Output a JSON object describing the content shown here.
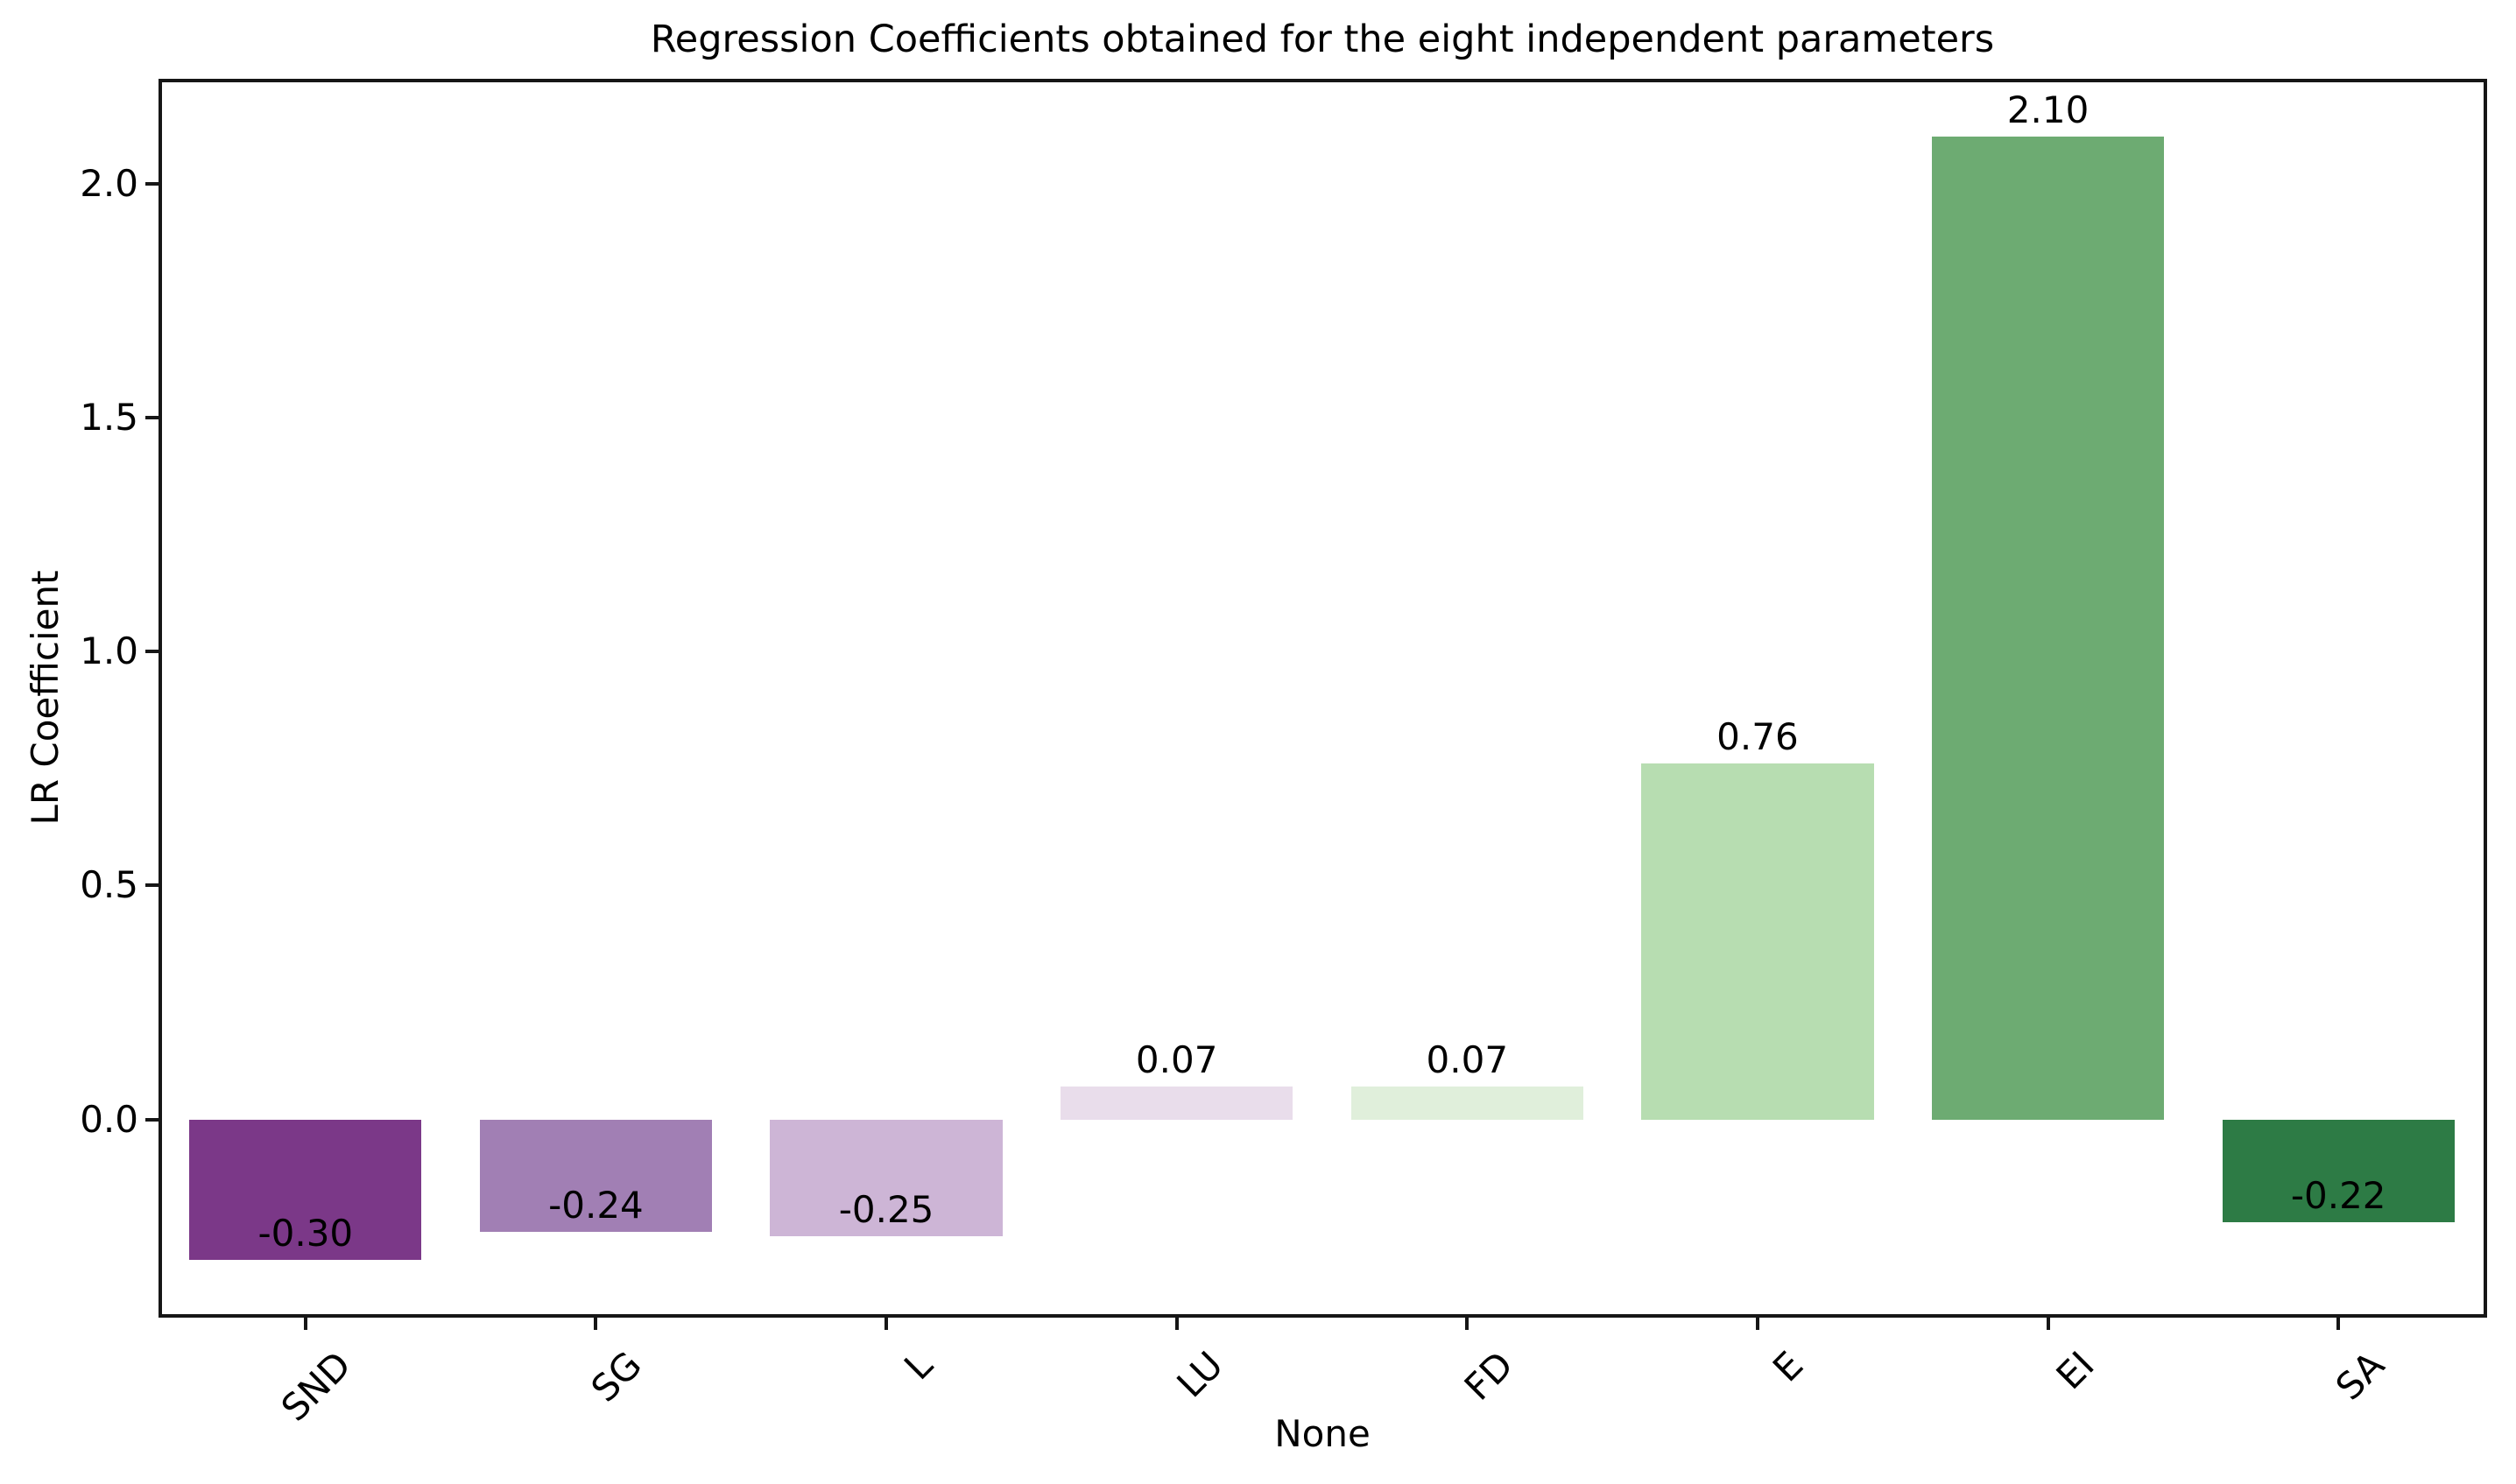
{
  "chart_data": {
    "type": "bar",
    "title": "Regression Coefficients obtained for the eight independent parameters",
    "xlabel": "None",
    "ylabel": "LR Coefficient",
    "categories": [
      "SND",
      "SG",
      "L",
      "LU",
      "FD",
      "E",
      "EI",
      "SA"
    ],
    "values": [
      -0.3,
      -0.24,
      -0.25,
      0.07,
      0.07,
      0.76,
      2.1,
      -0.22
    ],
    "bar_labels": [
      "-0.30",
      "-0.24",
      "-0.25",
      "0.07",
      "0.07",
      "0.76",
      "2.10",
      "-0.22"
    ],
    "bar_colors": [
      "#7b3888",
      "#a17fb4",
      "#cdb5d6",
      "#e9ddeb",
      "#e0efdb",
      "#b7ddb1",
      "#6dab72",
      "#2d7b45"
    ],
    "ylim": [
      -0.42,
      2.22
    ],
    "yticks": [
      0.0,
      0.5,
      1.0,
      1.5,
      2.0
    ],
    "ytick_labels": [
      "0.0",
      "0.5",
      "1.0",
      "1.5",
      "2.0"
    ],
    "grid": false,
    "legend_position": "none",
    "bar_width_fraction": 0.8,
    "spine_color": "#161616",
    "background_color": "#ffffff"
  }
}
